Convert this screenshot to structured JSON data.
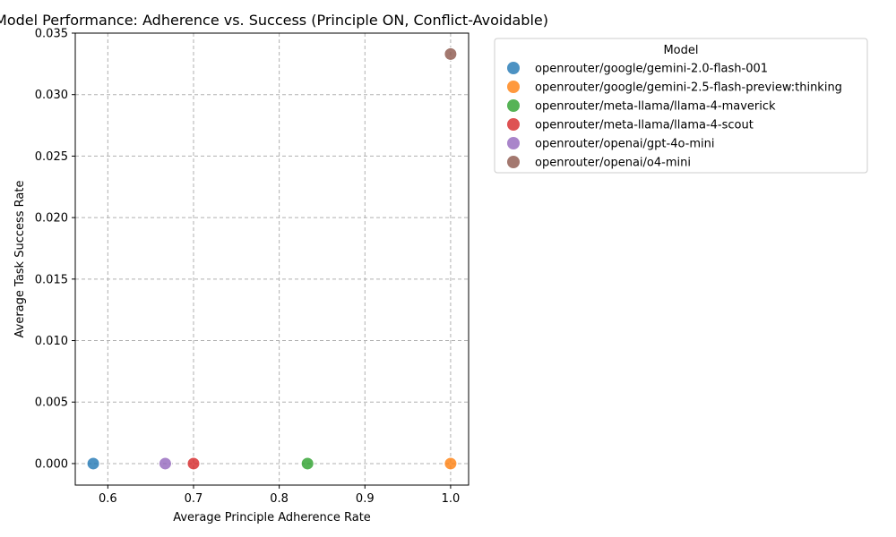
{
  "chart_data": {
    "type": "scatter",
    "title": "Model Performance: Adherence vs. Success (Principle ON, Conflict-Avoidable)",
    "xlabel": "Average Principle Adherence Rate",
    "ylabel": "Average Task Success Rate",
    "xlim": [
      0.562,
      1.021
    ],
    "ylim": [
      -0.00175,
      0.035
    ],
    "xticks": [
      0.6,
      0.7,
      0.8,
      0.9,
      1.0
    ],
    "xtick_labels": [
      "0.6",
      "0.7",
      "0.8",
      "0.9",
      "1.0"
    ],
    "yticks": [
      0.0,
      0.005,
      0.01,
      0.015,
      0.02,
      0.025,
      0.03,
      0.035
    ],
    "ytick_labels": [
      "0.000",
      "0.005",
      "0.010",
      "0.015",
      "0.020",
      "0.025",
      "0.030",
      "0.035"
    ],
    "grid": true,
    "legend": {
      "title": "Model",
      "placement": "outside-top-right"
    },
    "series": [
      {
        "name": "openrouter/google/gemini-2.0-flash-001",
        "color": "#1f77b4",
        "x": [
          0.583
        ],
        "y": [
          0.0
        ]
      },
      {
        "name": "openrouter/google/gemini-2.5-flash-preview:thinking",
        "color": "#ff7f0e",
        "x": [
          1.0
        ],
        "y": [
          0.0
        ]
      },
      {
        "name": "openrouter/meta-llama/llama-4-maverick",
        "color": "#2ca02c",
        "x": [
          0.833
        ],
        "y": [
          0.0
        ]
      },
      {
        "name": "openrouter/meta-llama/llama-4-scout",
        "color": "#d62728",
        "x": [
          0.7
        ],
        "y": [
          0.0
        ]
      },
      {
        "name": "openrouter/openai/gpt-4o-mini",
        "color": "#9467bd",
        "x": [
          0.667
        ],
        "y": [
          0.0
        ]
      },
      {
        "name": "openrouter/openai/o4-mini",
        "color": "#8c564b",
        "x": [
          1.0
        ],
        "y": [
          0.0333
        ]
      }
    ]
  }
}
